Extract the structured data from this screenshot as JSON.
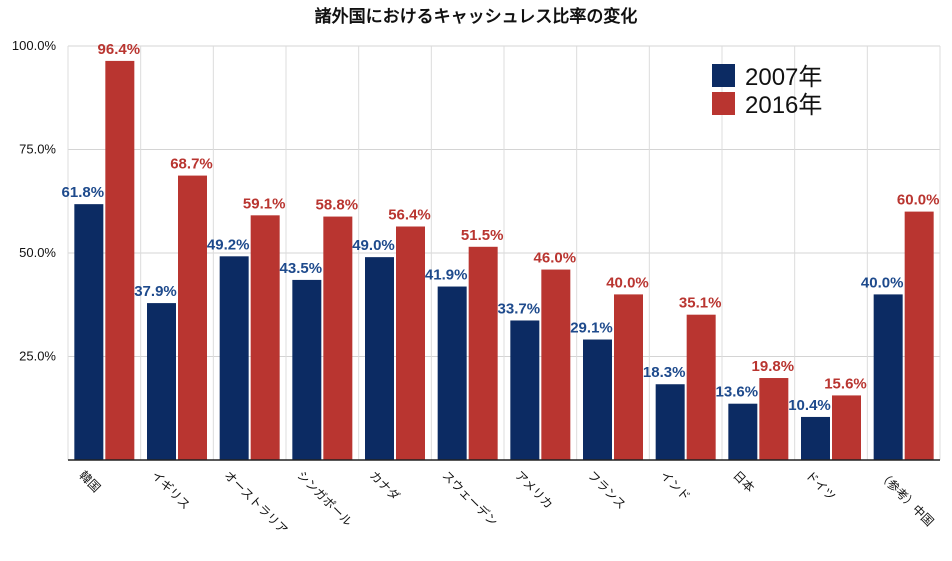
{
  "chart_data": {
    "type": "bar",
    "title": "諸外国におけるキャッシュレス比率の変化",
    "categories": [
      "韓国",
      "イギリス",
      "オーストラリア",
      "シンガポール",
      "カナダ",
      "スウェーデン",
      "アメリカ",
      "フランス",
      "インド",
      "日本",
      "ドイツ",
      "（参考）中国"
    ],
    "series": [
      {
        "name": "2007年",
        "color": "#0c2b63",
        "values": [
          61.8,
          37.9,
          49.2,
          43.5,
          49.0,
          41.9,
          33.7,
          29.1,
          18.3,
          13.6,
          10.4,
          40.0
        ],
        "labels": [
          "61.8%",
          "37.9%",
          "49.2%",
          "43.5%",
          "49.0%",
          "41.9%",
          "33.7%",
          "29.1%",
          "18.3%",
          "13.6%",
          "10.4%",
          "40.0%"
        ]
      },
      {
        "name": "2016年",
        "color": "#b93530",
        "values": [
          96.4,
          68.7,
          59.1,
          58.8,
          56.4,
          51.5,
          46.0,
          40.0,
          35.1,
          19.8,
          15.6,
          60.0
        ],
        "labels": [
          "96.4%",
          "68.7%",
          "59.1%",
          "58.8%",
          "56.4%",
          "51.5%",
          "46.0%",
          "40.0%",
          "35.1%",
          "19.8%",
          "15.6%",
          "60.0%"
        ]
      }
    ],
    "ylim": [
      0,
      100
    ],
    "yticks": [
      25,
      50,
      75,
      100
    ],
    "ytick_labels": [
      "25.0%",
      "50.0%",
      "75.0%",
      "100.0%"
    ],
    "label_color_2007": "#1e4a8c",
    "grid": true,
    "legend": "top-right",
    "xlabel": "",
    "ylabel": ""
  }
}
